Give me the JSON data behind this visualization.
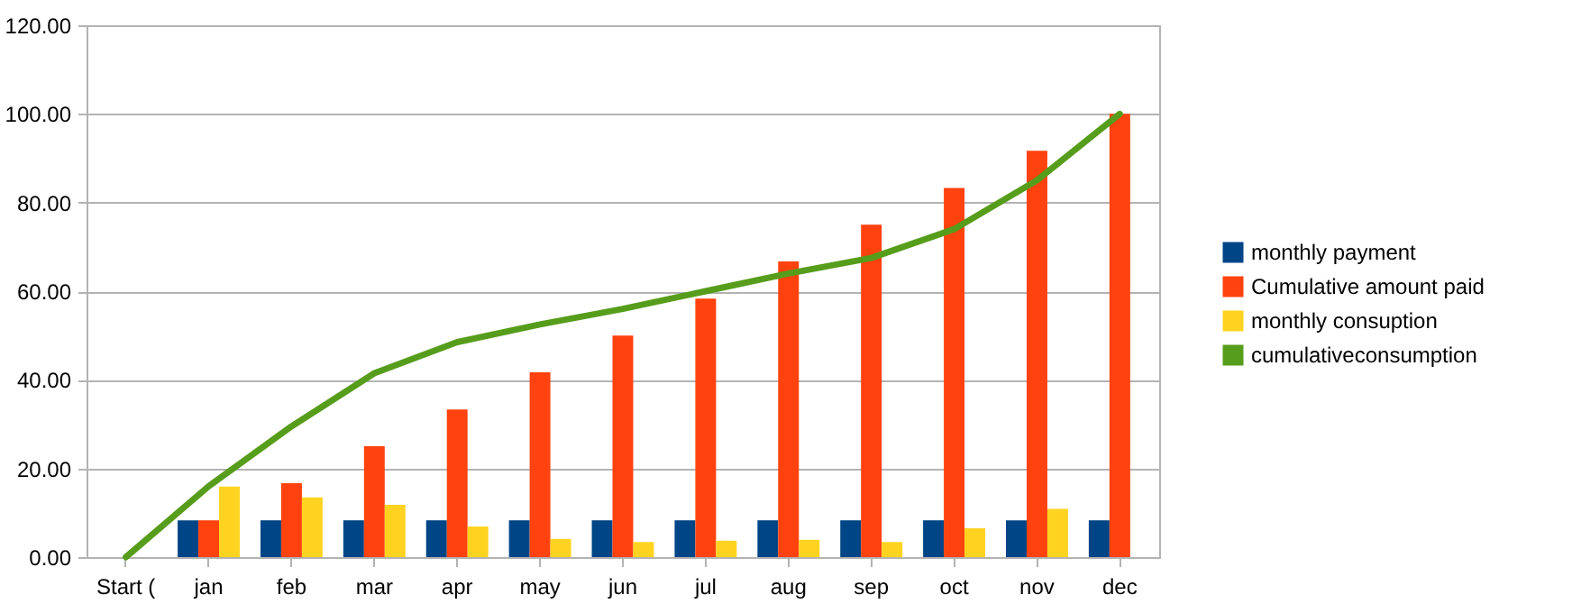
{
  "chart_data": {
    "type": "bar",
    "categories": [
      "Start (",
      "jan",
      "feb",
      "mar",
      "apr",
      "may",
      "jun",
      "jul",
      "aug",
      "sep",
      "oct",
      "nov",
      "dec"
    ],
    "series": [
      {
        "name": "monthly payment",
        "color": "#004586",
        "values": [
          null,
          8.3,
          8.3,
          8.3,
          8.3,
          8.3,
          8.3,
          8.3,
          8.3,
          8.3,
          8.3,
          8.3,
          8.3
        ]
      },
      {
        "name": "Cumulative amount paid",
        "color": "#ff420e",
        "values": [
          null,
          8.3,
          16.7,
          25,
          33.3,
          41.7,
          50,
          58.3,
          66.7,
          75,
          83.3,
          91.7,
          100
        ]
      },
      {
        "name": "monthly consuption",
        "color": "#ffd320",
        "values": [
          null,
          15.9,
          13.5,
          11.8,
          6.9,
          4.1,
          3.4,
          3.7,
          3.9,
          3.4,
          6.5,
          10.9,
          null
        ]
      },
      {
        "name": "cumulativeconsumption",
        "color": "#579d1c",
        "type": "line",
        "values": [
          0,
          16,
          29.5,
          41.5,
          48.5,
          52.5,
          56,
          60,
          64,
          67.5,
          74,
          85,
          100
        ]
      }
    ],
    "ylim": [
      0,
      120
    ],
    "yticks": [
      {
        "value": 0,
        "label": "0.00"
      },
      {
        "value": 20,
        "label": "20.00"
      },
      {
        "value": 40,
        "label": "40.00"
      },
      {
        "value": 60,
        "label": "60.00"
      },
      {
        "value": 80,
        "label": "80.00"
      },
      {
        "value": 100,
        "label": "100.00"
      },
      {
        "value": 120,
        "label": "120.00"
      }
    ],
    "grid": "y",
    "legend": "right"
  }
}
